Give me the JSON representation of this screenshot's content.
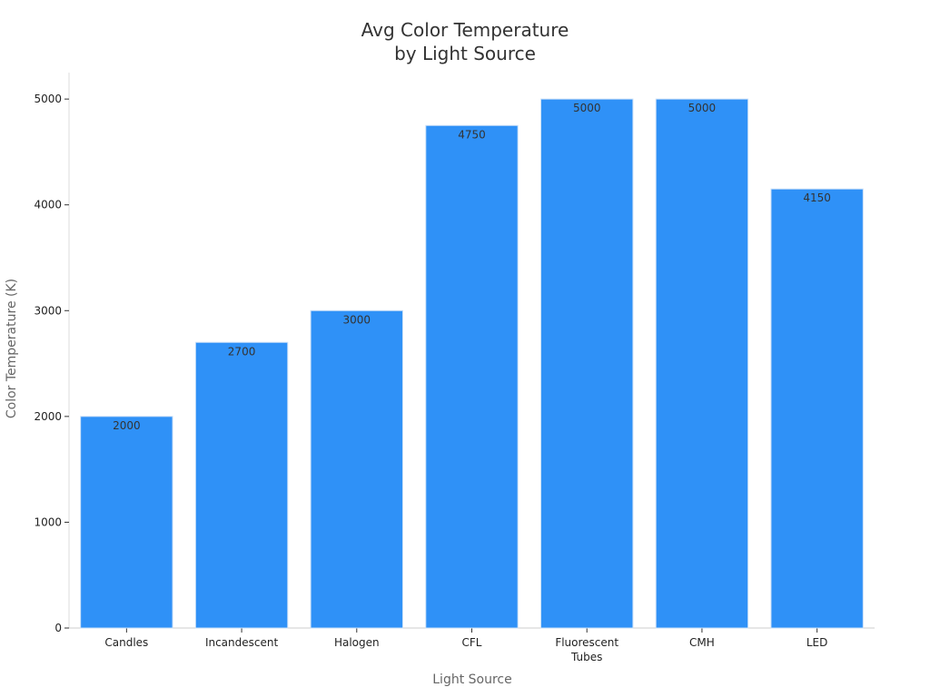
{
  "chart_data": {
    "type": "bar",
    "title": "Avg Color Temperature\nby Light Source",
    "x_label": "Light Source",
    "y_label": "Color Temperature (K)",
    "categories": [
      "Candles",
      "Incandescent",
      "Halogen",
      "CFL",
      "Fluorescent\nTubes",
      "CMH",
      "LED"
    ],
    "values": [
      2000,
      2700,
      3000,
      4750,
      5000,
      5000,
      4150
    ],
    "color": "#2f91f7",
    "ylim": [
      0,
      5250
    ],
    "yticks": [
      0,
      1000,
      2000,
      3000,
      4000,
      5000
    ]
  }
}
